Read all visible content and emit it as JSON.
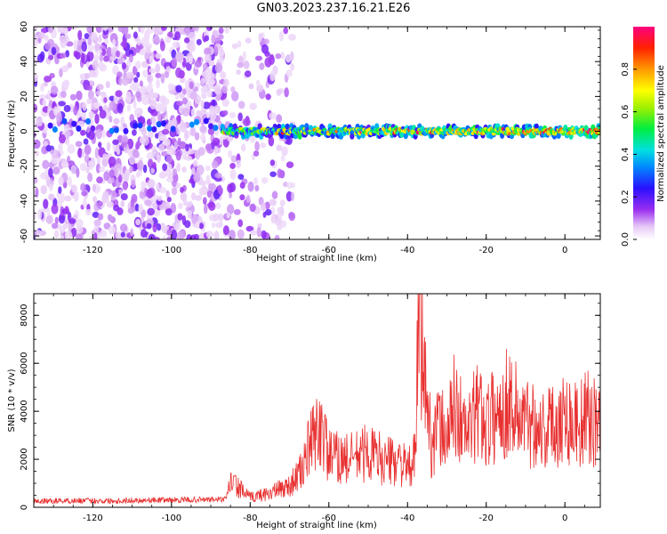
{
  "title": "GN03.2023.237.16.21.E26",
  "colors": {
    "signal": "#e83030",
    "axis": "#000000",
    "background": "#ffffff"
  },
  "chart_data": [
    {
      "type": "heatmap",
      "panel": "spectrogram",
      "xlabel": "Height of straight line (km)",
      "ylabel": "Frequency (Hz)",
      "xlim": [
        -135,
        9
      ],
      "ylim": [
        -62,
        60
      ],
      "xticks": [
        -120,
        -100,
        -80,
        -60,
        -40,
        -20,
        0
      ],
      "yticks": [
        -60,
        -40,
        -20,
        0,
        20,
        40,
        60
      ],
      "colorbar": {
        "label": "Normalized spectral amplitude",
        "range": [
          0,
          1
        ],
        "ticks": [
          0.0,
          0.2,
          0.4,
          0.6,
          0.8
        ],
        "colormap": "rainbow-white-to-red"
      },
      "description_values": {
        "signal_band_frequency_hz": 0,
        "signal_band_start_km": -87,
        "peak_amplitude": 0.95
      }
    },
    {
      "type": "line",
      "panel": "snr",
      "xlabel": "Height of straight line (km)",
      "ylabel": "SNR (10 * v/v)",
      "xlim": [
        -135,
        9
      ],
      "ylim": [
        0,
        8900
      ],
      "xticks": [
        -120,
        -100,
        -80,
        -60,
        -40,
        -20,
        0
      ],
      "yticks": [
        0,
        2000,
        4000,
        6000,
        8000
      ],
      "series": [
        {
          "color": "#e83030",
          "x": [
            -135,
            -125,
            -115,
            -105,
            -95,
            -86,
            -85,
            -80,
            -75,
            -70,
            -67,
            -65,
            -62,
            -60,
            -55,
            -50,
            -45,
            -42,
            -40,
            -38,
            -37,
            -36,
            -34,
            -32,
            -30,
            -28,
            -25,
            -22,
            -20,
            -17,
            -14,
            -12,
            -10,
            -8,
            -5,
            -2,
            0,
            3,
            6,
            9
          ],
          "values": [
            250,
            280,
            270,
            300,
            310,
            330,
            1100,
            400,
            600,
            900,
            1500,
            2500,
            3400,
            2100,
            2000,
            2300,
            1900,
            2000,
            1500,
            2100,
            8800,
            5800,
            2700,
            3400,
            3000,
            4300,
            3000,
            4100,
            3500,
            3900,
            4500,
            3900,
            3500,
            3600,
            3200,
            3600,
            3800,
            3500,
            3700,
            3400
          ]
        }
      ]
    }
  ]
}
